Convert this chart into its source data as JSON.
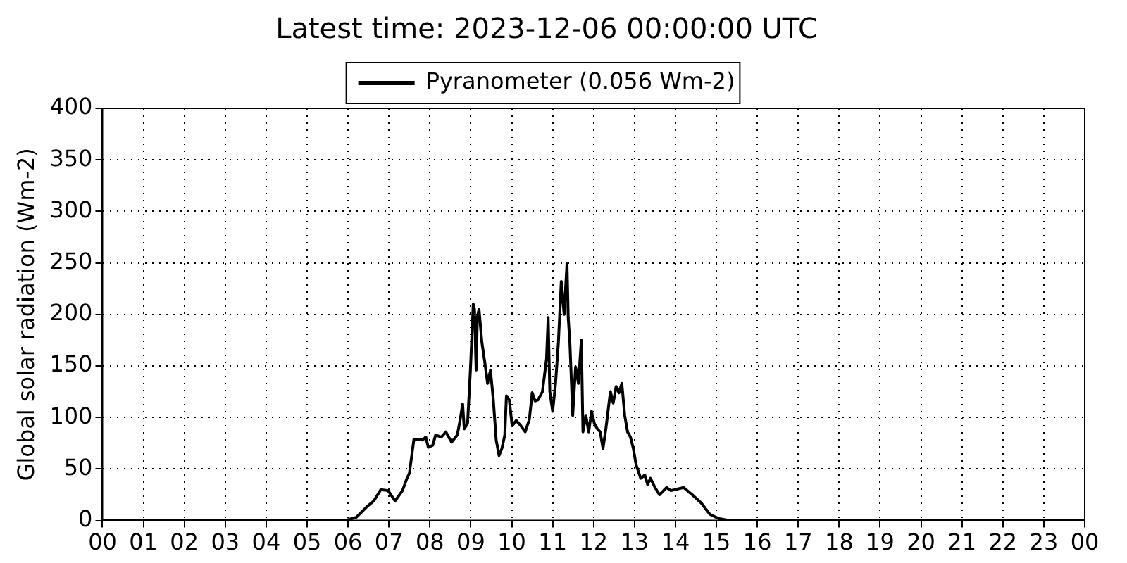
{
  "chart_data": {
    "type": "line",
    "title": "Latest time: 2023-12-06 00:00:00 UTC",
    "ylabel": "Global solar radiation (Wm-2)",
    "x": [
      0,
      5.92,
      6.2,
      6.45,
      6.63,
      6.8,
      6.98,
      7.15,
      7.33,
      7.44,
      7.5,
      7.61,
      7.72,
      7.82,
      7.9,
      7.96,
      8.07,
      8.14,
      8.28,
      8.39,
      8.53,
      8.67,
      8.74,
      8.8,
      8.84,
      8.92,
      8.99,
      9.06,
      9.09,
      9.13,
      9.16,
      9.2,
      9.27,
      9.34,
      9.41,
      9.48,
      9.55,
      9.62,
      9.69,
      9.76,
      9.83,
      9.87,
      9.94,
      10.01,
      10.11,
      10.22,
      10.33,
      10.43,
      10.5,
      10.57,
      10.64,
      10.75,
      10.85,
      10.89,
      10.93,
      11.0,
      11.07,
      11.14,
      11.21,
      11.28,
      11.35,
      11.38,
      11.42,
      11.49,
      11.56,
      11.63,
      11.7,
      11.74,
      11.81,
      11.88,
      11.95,
      12.02,
      12.09,
      12.16,
      12.23,
      12.3,
      12.41,
      12.48,
      12.55,
      12.62,
      12.69,
      12.76,
      12.83,
      12.9,
      12.97,
      13.04,
      13.15,
      13.25,
      13.32,
      13.39,
      13.5,
      13.61,
      13.71,
      13.78,
      13.89,
      13.99,
      14.2,
      14.41,
      14.63,
      14.84,
      15.05,
      15.33,
      24
    ],
    "series": [
      {
        "name": "Pyranometer (0.056 Wm-2)",
        "color": "#000000",
        "values": [
          0,
          0,
          3,
          13,
          19,
          30,
          29,
          19,
          29,
          41,
          46,
          79,
          79,
          78,
          81,
          71,
          73,
          83,
          81,
          86,
          76,
          83,
          98,
          113,
          89,
          94,
          146,
          210,
          205,
          146,
          197,
          205,
          173,
          154,
          133,
          146,
          117,
          78,
          63,
          70,
          83,
          121,
          117,
          92,
          97,
          92,
          86,
          98,
          124,
          116,
          117,
          125,
          157,
          197,
          125,
          106,
          133,
          173,
          232,
          200,
          249,
          197,
          173,
          102,
          149,
          133,
          175,
          86,
          102,
          86,
          106,
          94,
          89,
          86,
          70,
          89,
          125,
          114,
          130,
          124,
          133,
          102,
          86,
          81,
          70,
          54,
          41,
          44,
          35,
          41,
          32,
          25,
          29,
          32,
          29,
          30,
          32,
          25,
          17,
          6,
          2,
          0,
          0
        ]
      }
    ],
    "xlim": [
      0,
      24
    ],
    "xticks": [
      {
        "value": 0,
        "label": "00"
      },
      {
        "value": 1,
        "label": "01"
      },
      {
        "value": 2,
        "label": "02"
      },
      {
        "value": 3,
        "label": "03"
      },
      {
        "value": 4,
        "label": "04"
      },
      {
        "value": 5,
        "label": "05"
      },
      {
        "value": 6,
        "label": "06"
      },
      {
        "value": 7,
        "label": "07"
      },
      {
        "value": 8,
        "label": "08"
      },
      {
        "value": 9,
        "label": "09"
      },
      10,
      11,
      12,
      13,
      14,
      15,
      16,
      17,
      18,
      19,
      20,
      21,
      22,
      23,
      {
        "value": 24,
        "label": "00"
      }
    ],
    "ylim": [
      0,
      400
    ],
    "yticks": [
      0,
      50,
      100,
      150,
      200,
      250,
      300,
      350,
      400
    ],
    "grid": true,
    "legend": "top",
    "marker": "none",
    "line_style": "solid"
  }
}
